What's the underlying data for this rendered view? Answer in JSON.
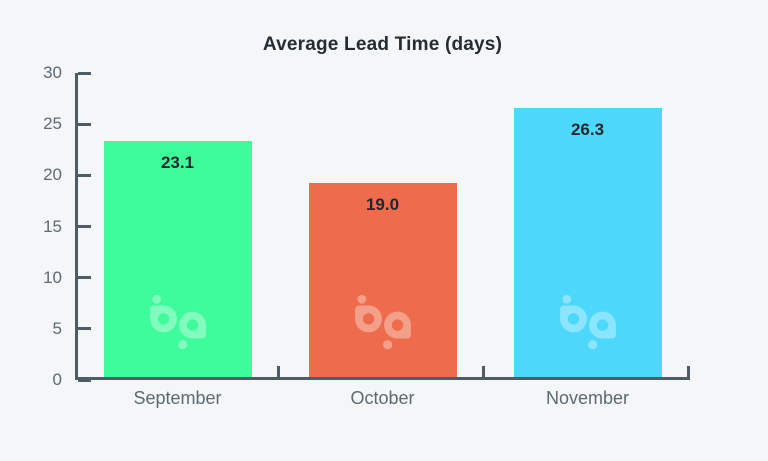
{
  "chart_data": {
    "type": "bar",
    "title": "Average Lead Time (days)",
    "categories": [
      "September",
      "October",
      "November"
    ],
    "values": [
      23.1,
      19.0,
      26.3
    ],
    "value_labels": [
      "23.1",
      "19.0",
      "26.3"
    ],
    "bar_colors": [
      "#3efb9c",
      "#ee6c4b",
      "#4dd7fb"
    ],
    "xlabel": "",
    "ylabel": "",
    "ylim": [
      0,
      30
    ],
    "yticks": [
      0,
      5,
      10,
      15,
      20,
      25,
      30
    ],
    "grid": false,
    "legend": false,
    "value_labels_position": "inside-top",
    "watermark": "bp-logo on each bar"
  },
  "colors": {
    "background": "#f5f6f7",
    "axis": "#4e5c65",
    "tick_label": "#5c6a73",
    "title": "#242d34",
    "value_label": "#1f282f",
    "watermark": "rgba(255,255,255,0.35)"
  }
}
